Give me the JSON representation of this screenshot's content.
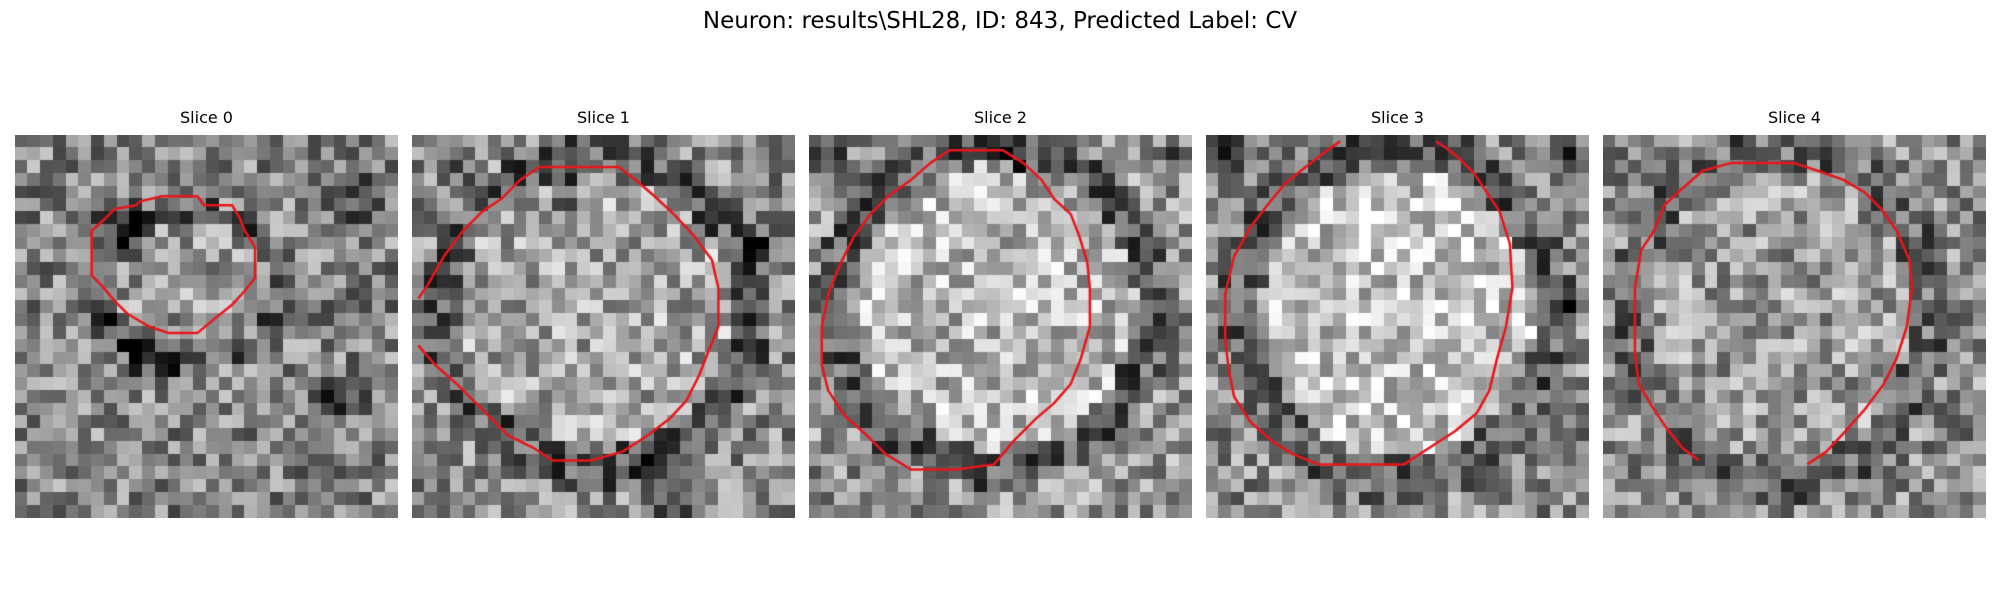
{
  "figure": {
    "suptitle": "Neuron: results\\SHL28, ID: 843, Predicted Label: CV"
  },
  "contour_color": "#e8161b",
  "slices": [
    {
      "title": "Slice 0"
    },
    {
      "title": "Slice 1"
    },
    {
      "title": "Slice 2"
    },
    {
      "title": "Slice 3"
    },
    {
      "title": "Slice 4"
    }
  ]
}
